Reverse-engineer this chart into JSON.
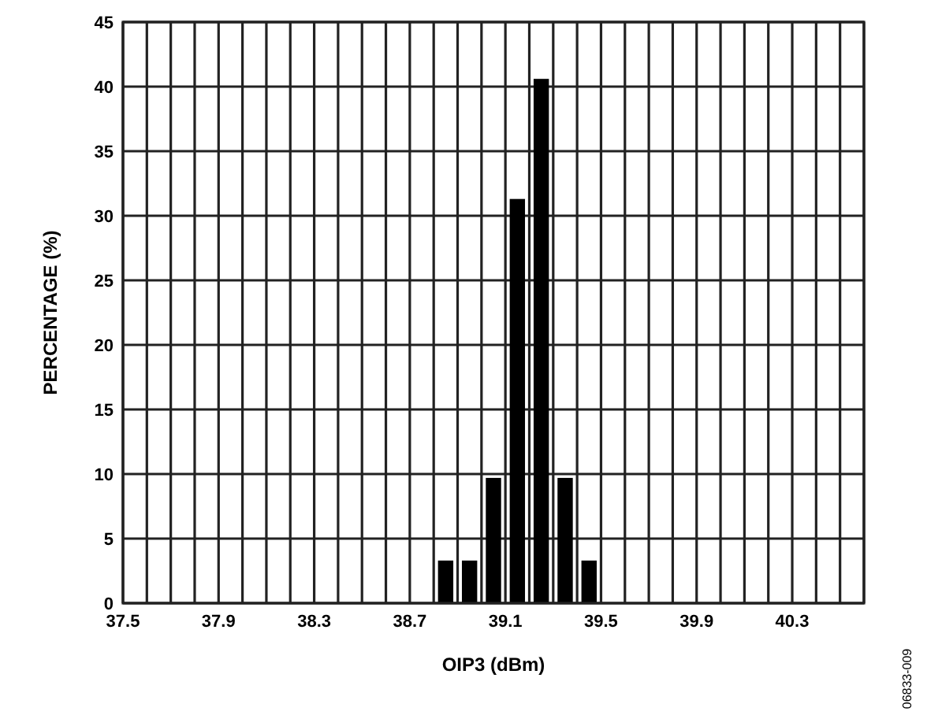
{
  "chart_data": {
    "type": "histogram",
    "xlabel": "OIP3 (dBm)",
    "ylabel": "PERCENTAGE (%)",
    "bins": [
      38.8,
      38.9,
      39.0,
      39.1,
      39.2,
      39.3,
      39.4,
      39.5
    ],
    "values": [
      3.3,
      3.3,
      9.7,
      31.3,
      40.6,
      9.7,
      3.3
    ],
    "color": "#000000",
    "xlim": [
      37.5,
      40.6
    ],
    "xticks": [
      37.5,
      {
        "value": 37.6,
        "label": null
      },
      {
        "value": 37.7,
        "label": null
      },
      {
        "value": 37.8,
        "label": null
      },
      37.9,
      {
        "value": 38.0,
        "label": null
      },
      {
        "value": 38.1,
        "label": null
      },
      {
        "value": 38.2,
        "label": null
      },
      38.3,
      {
        "value": 38.4,
        "label": null
      },
      {
        "value": 38.5,
        "label": null
      },
      {
        "value": 38.6,
        "label": null
      },
      38.7,
      {
        "value": 38.8,
        "label": null
      },
      {
        "value": 38.9,
        "label": null
      },
      {
        "value": 39.0,
        "label": null
      },
      39.1,
      {
        "value": 39.2,
        "label": null
      },
      {
        "value": 39.3,
        "label": null
      },
      {
        "value": 39.4,
        "label": null
      },
      39.5,
      {
        "value": 39.6,
        "label": null
      },
      {
        "value": 39.7,
        "label": null
      },
      {
        "value": 39.8,
        "label": null
      },
      39.9,
      {
        "value": 40.0,
        "label": null
      },
      {
        "value": 40.1,
        "label": null
      },
      {
        "value": 40.2,
        "label": null
      },
      40.3,
      {
        "value": 40.4,
        "label": null
      },
      {
        "value": 40.5,
        "label": null
      },
      {
        "value": 40.6,
        "label": null
      }
    ],
    "ylim": [
      0,
      45
    ],
    "yticks": [
      0,
      5,
      10,
      15,
      20,
      25,
      30,
      35,
      40,
      45
    ],
    "grid": true,
    "annotations": [
      "06833-009"
    ]
  }
}
